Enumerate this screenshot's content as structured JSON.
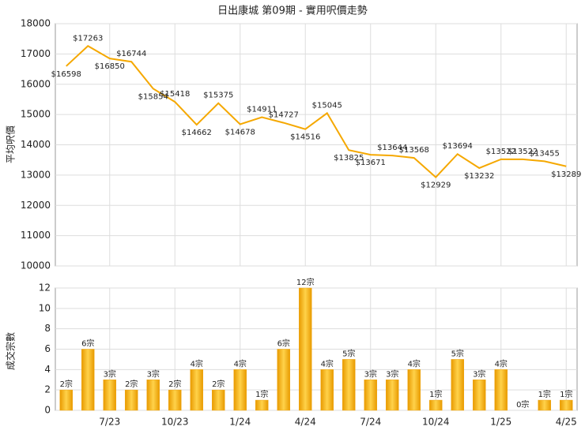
{
  "chart_data": [
    {
      "type": "line",
      "title": "日出康城 第09期 - 實用呎價走勢",
      "y_label": "平均呎價",
      "color": "#f5a800",
      "values": [
        16598,
        17263,
        16850,
        16744,
        15854,
        15418,
        14662,
        15375,
        14678,
        14911,
        14727,
        14516,
        15045,
        13825,
        13671,
        13644,
        13568,
        12929,
        13694,
        13232,
        13522,
        13522,
        13455,
        13289
      ],
      "value_labels": [
        "$16598",
        "$17263",
        "$16850",
        "$16744",
        "$15854",
        "$15418",
        "$14662",
        "$15375",
        "$14678",
        "$14911",
        "$14727",
        "$14516",
        "$15045",
        "$13825",
        "$13671",
        "$13644",
        "$13568",
        "$12929",
        "$13694",
        "$13232",
        "$13522",
        "$13522",
        "$13455",
        "$13289"
      ],
      "ylim": [
        10000,
        18000
      ],
      "yticks": [
        10000,
        11000,
        12000,
        13000,
        14000,
        15000,
        16000,
        17000,
        18000
      ],
      "grid": true
    },
    {
      "type": "bar",
      "y_label": "成交宗數",
      "color": "#f0a818",
      "categories": [
        null,
        null,
        "7/23",
        null,
        null,
        "10/23",
        null,
        null,
        "1/24",
        null,
        null,
        "4/24",
        null,
        null,
        "7/24",
        null,
        null,
        "10/24",
        null,
        null,
        "1/25",
        null,
        null,
        "4/25"
      ],
      "values": [
        2,
        6,
        3,
        2,
        3,
        2,
        4,
        2,
        4,
        1,
        6,
        12,
        4,
        5,
        3,
        3,
        4,
        1,
        5,
        3,
        4,
        0,
        1,
        1
      ],
      "value_labels": [
        "2宗",
        "6宗",
        "3宗",
        "2宗",
        "3宗",
        "2宗",
        "4宗",
        "2宗",
        "4宗",
        "1宗",
        "6宗",
        "12宗",
        "4宗",
        "5宗",
        "3宗",
        "3宗",
        "4宗",
        "1宗",
        "5宗",
        "3宗",
        "4宗",
        "0宗",
        "1宗",
        "1宗"
      ],
      "ylim": [
        0,
        12
      ],
      "yticks": [
        0,
        2,
        4,
        6,
        8,
        10,
        12
      ],
      "grid": true
    }
  ]
}
